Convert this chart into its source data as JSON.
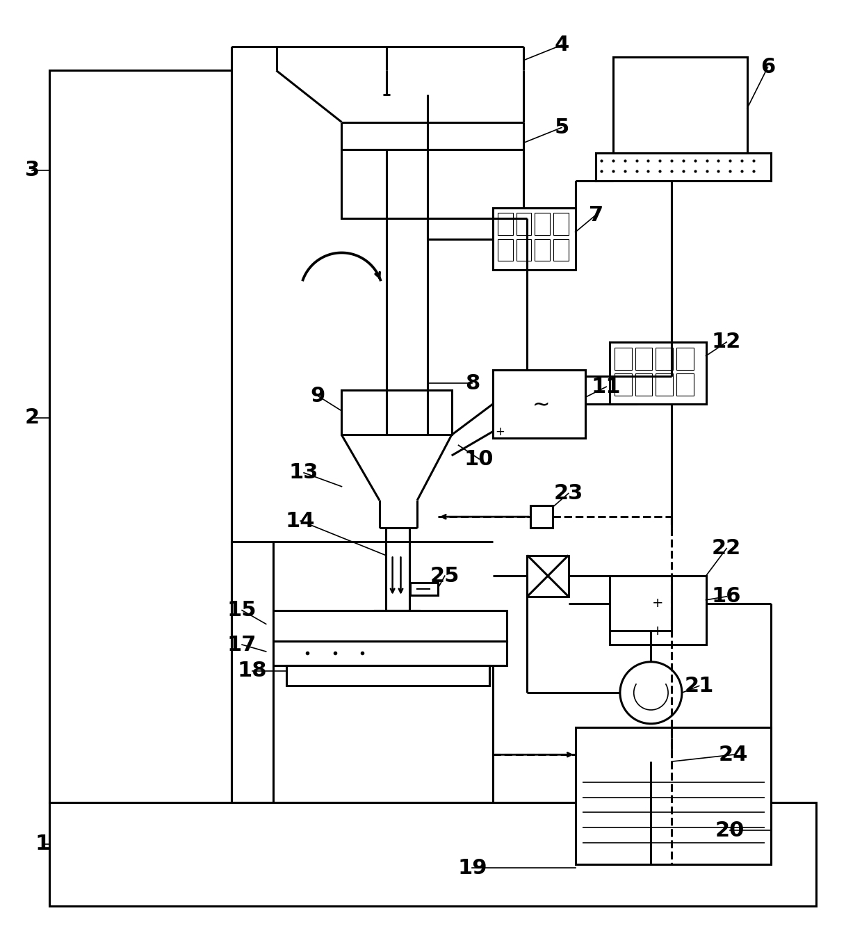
{
  "bg_color": "#ffffff",
  "lc": "#000000",
  "lw": 2.2,
  "lw_thin": 1.2,
  "fig_w": 12.4,
  "fig_h": 13.36
}
